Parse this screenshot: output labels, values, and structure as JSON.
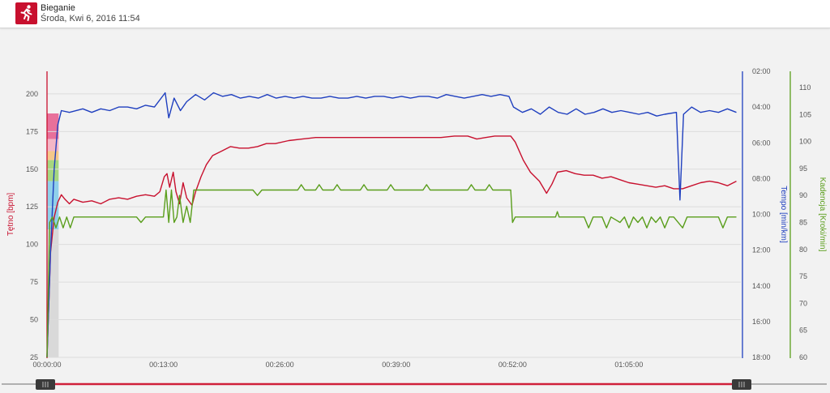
{
  "header": {
    "title": "Bieganie",
    "subtitle": "Środa, Kwi 6, 2016 11:54",
    "icon": "running-person-icon",
    "icon_color": "#c8102e"
  },
  "chart_data": {
    "type": "line",
    "x_ticks": [
      "00:00:00",
      "00:13:00",
      "00:26:00",
      "00:39:00",
      "00:52:00",
      "01:05:00"
    ],
    "x_range_minutes": [
      0,
      77.5
    ],
    "zones": {
      "colors": [
        "#e8709a",
        "#f4b6c6",
        "#f5c88a",
        "#a6d67f",
        "#8fd0ea",
        "#d9d9d9"
      ],
      "hr_bounds": [
        [
          170,
          187
        ],
        [
          162,
          170
        ],
        [
          156,
          162
        ],
        [
          142,
          156
        ],
        [
          110,
          142
        ],
        [
          25,
          110
        ]
      ]
    },
    "axes": {
      "heart_rate": {
        "label": "Tętno [bpm]",
        "color": "#c8102e",
        "ticks": [
          25,
          50,
          75,
          100,
          125,
          150,
          175,
          200
        ],
        "range": [
          25,
          215
        ]
      },
      "pace": {
        "label": "Tempo [min/km]",
        "color": "#1f3fbf",
        "ticks": [
          "02:00",
          "04:00",
          "06:00",
          "08:00",
          "10:00",
          "12:00",
          "14:00",
          "16:00",
          "18:00"
        ],
        "range_min_per_km": [
          2,
          18
        ]
      },
      "cadence": {
        "label": "Kadencja [Kroki/min]",
        "color": "#5a9e1c",
        "ticks": [
          60,
          65,
          70,
          75,
          80,
          85,
          90,
          95,
          100,
          105,
          110
        ],
        "range": [
          60,
          113
        ]
      }
    },
    "series": [
      {
        "key": "heart_rate",
        "name": "Tętno [bpm]",
        "color": "#c8102e",
        "unit": "bpm",
        "points": [
          [
            0,
            25
          ],
          [
            0.4,
            95
          ],
          [
            0.8,
            118
          ],
          [
            1.2,
            128
          ],
          [
            1.6,
            133
          ],
          [
            2.0,
            130
          ],
          [
            2.5,
            127
          ],
          [
            3.0,
            130
          ],
          [
            4.0,
            128
          ],
          [
            5.0,
            129
          ],
          [
            6.0,
            127
          ],
          [
            7.0,
            130
          ],
          [
            8.0,
            131
          ],
          [
            9.0,
            130
          ],
          [
            10.0,
            132
          ],
          [
            11.0,
            133
          ],
          [
            12.0,
            132
          ],
          [
            12.6,
            135
          ],
          [
            13.1,
            145
          ],
          [
            13.4,
            147
          ],
          [
            13.7,
            138
          ],
          [
            14.1,
            148
          ],
          [
            14.4,
            135
          ],
          [
            14.8,
            127
          ],
          [
            15.2,
            141
          ],
          [
            15.6,
            131
          ],
          [
            16.2,
            126
          ],
          [
            16.6,
            135
          ],
          [
            17.2,
            145
          ],
          [
            17.8,
            153
          ],
          [
            18.5,
            159
          ],
          [
            19.5,
            162
          ],
          [
            20.5,
            165
          ],
          [
            21.5,
            164
          ],
          [
            22.5,
            164
          ],
          [
            23.5,
            165
          ],
          [
            24.5,
            167
          ],
          [
            25.5,
            167
          ],
          [
            27.0,
            169
          ],
          [
            28.5,
            170
          ],
          [
            30.0,
            171
          ],
          [
            32.0,
            171
          ],
          [
            34.0,
            171
          ],
          [
            36.0,
            171
          ],
          [
            38.0,
            171
          ],
          [
            40.0,
            171
          ],
          [
            42.0,
            171
          ],
          [
            44.0,
            171
          ],
          [
            45.5,
            172
          ],
          [
            47.0,
            172
          ],
          [
            48.0,
            170
          ],
          [
            49.0,
            171
          ],
          [
            50.0,
            172
          ],
          [
            51.0,
            172
          ],
          [
            51.8,
            172
          ],
          [
            52.3,
            168
          ],
          [
            53.2,
            156
          ],
          [
            54.0,
            148
          ],
          [
            55.0,
            142
          ],
          [
            55.8,
            134
          ],
          [
            56.4,
            140
          ],
          [
            57.0,
            148
          ],
          [
            58.0,
            149
          ],
          [
            59.0,
            147
          ],
          [
            60.0,
            146
          ],
          [
            61.0,
            146
          ],
          [
            62.0,
            144
          ],
          [
            63.0,
            145
          ],
          [
            64.0,
            143
          ],
          [
            65.0,
            141
          ],
          [
            66.0,
            140
          ],
          [
            67.0,
            139
          ],
          [
            68.0,
            138
          ],
          [
            69.0,
            139
          ],
          [
            70.0,
            137
          ],
          [
            71.0,
            137
          ],
          [
            72.0,
            139
          ],
          [
            73.0,
            141
          ],
          [
            74.0,
            142
          ],
          [
            75.0,
            141
          ],
          [
            76.0,
            139
          ],
          [
            77.0,
            142
          ]
        ]
      },
      {
        "key": "pace",
        "name": "Tempo [min/km]",
        "color": "#1f3fbf",
        "unit": "min/km",
        "points": [
          [
            0,
            18.0
          ],
          [
            0.4,
            12.0
          ],
          [
            0.8,
            7.5
          ],
          [
            1.2,
            5.0
          ],
          [
            1.6,
            4.2
          ],
          [
            2.5,
            4.3
          ],
          [
            4.0,
            4.1
          ],
          [
            5.0,
            4.3
          ],
          [
            6.0,
            4.1
          ],
          [
            7.0,
            4.2
          ],
          [
            8.0,
            4.0
          ],
          [
            9.0,
            4.0
          ],
          [
            10.0,
            4.1
          ],
          [
            11.0,
            3.9
          ],
          [
            12.0,
            4.0
          ],
          [
            13.2,
            3.2
          ],
          [
            13.6,
            4.6
          ],
          [
            14.2,
            3.5
          ],
          [
            14.9,
            4.2
          ],
          [
            15.6,
            3.7
          ],
          [
            16.6,
            3.3
          ],
          [
            17.6,
            3.6
          ],
          [
            18.6,
            3.2
          ],
          [
            19.6,
            3.4
          ],
          [
            20.6,
            3.3
          ],
          [
            21.6,
            3.5
          ],
          [
            22.6,
            3.4
          ],
          [
            23.6,
            3.5
          ],
          [
            24.6,
            3.3
          ],
          [
            25.6,
            3.5
          ],
          [
            26.6,
            3.4
          ],
          [
            27.6,
            3.5
          ],
          [
            28.6,
            3.4
          ],
          [
            29.6,
            3.5
          ],
          [
            30.6,
            3.5
          ],
          [
            31.6,
            3.4
          ],
          [
            32.6,
            3.5
          ],
          [
            33.6,
            3.5
          ],
          [
            34.6,
            3.4
          ],
          [
            35.6,
            3.5
          ],
          [
            36.6,
            3.4
          ],
          [
            37.6,
            3.4
          ],
          [
            38.6,
            3.5
          ],
          [
            39.6,
            3.4
          ],
          [
            40.6,
            3.5
          ],
          [
            41.6,
            3.4
          ],
          [
            42.6,
            3.4
          ],
          [
            43.6,
            3.5
          ],
          [
            44.6,
            3.3
          ],
          [
            45.6,
            3.4
          ],
          [
            46.6,
            3.5
          ],
          [
            47.6,
            3.4
          ],
          [
            48.6,
            3.3
          ],
          [
            49.6,
            3.4
          ],
          [
            50.6,
            3.3
          ],
          [
            51.6,
            3.4
          ],
          [
            52.1,
            4.0
          ],
          [
            53.1,
            4.3
          ],
          [
            54.1,
            4.1
          ],
          [
            55.1,
            4.4
          ],
          [
            56.1,
            4.0
          ],
          [
            57.1,
            4.3
          ],
          [
            58.1,
            4.4
          ],
          [
            59.1,
            4.1
          ],
          [
            60.1,
            4.4
          ],
          [
            61.1,
            4.3
          ],
          [
            62.1,
            4.1
          ],
          [
            63.1,
            4.3
          ],
          [
            64.1,
            4.2
          ],
          [
            65.1,
            4.3
          ],
          [
            66.1,
            4.4
          ],
          [
            67.1,
            4.3
          ],
          [
            68.1,
            4.5
          ],
          [
            69.0,
            4.4
          ],
          [
            70.3,
            4.3
          ],
          [
            70.7,
            9.2
          ],
          [
            71.1,
            4.4
          ],
          [
            72.0,
            4.0
          ],
          [
            73.0,
            4.3
          ],
          [
            74.0,
            4.2
          ],
          [
            75.0,
            4.3
          ],
          [
            76.0,
            4.1
          ],
          [
            77.0,
            4.3
          ]
        ]
      },
      {
        "key": "cadence",
        "name": "Kadencja [Kroki/min]",
        "color": "#5a9e1c",
        "unit": "kroki/min",
        "points": [
          [
            0,
            60
          ],
          [
            0.3,
            85
          ],
          [
            0.6,
            86
          ],
          [
            1.0,
            84
          ],
          [
            1.4,
            86
          ],
          [
            1.8,
            84
          ],
          [
            2.2,
            86
          ],
          [
            2.6,
            84
          ],
          [
            3.0,
            86
          ],
          [
            5.0,
            86
          ],
          [
            8.0,
            86
          ],
          [
            10.0,
            86
          ],
          [
            10.5,
            85
          ],
          [
            11.0,
            86
          ],
          [
            12.0,
            86
          ],
          [
            13.0,
            86
          ],
          [
            13.3,
            91
          ],
          [
            13.6,
            85
          ],
          [
            13.9,
            91
          ],
          [
            14.2,
            85
          ],
          [
            14.5,
            86
          ],
          [
            14.8,
            90
          ],
          [
            15.2,
            85
          ],
          [
            15.6,
            88
          ],
          [
            16.0,
            85
          ],
          [
            16.4,
            91
          ],
          [
            17.0,
            91
          ],
          [
            20.0,
            91
          ],
          [
            23.0,
            91
          ],
          [
            23.5,
            90
          ],
          [
            24.0,
            91
          ],
          [
            27.0,
            91
          ],
          [
            28.0,
            91
          ],
          [
            28.4,
            92
          ],
          [
            28.8,
            91
          ],
          [
            30.0,
            91
          ],
          [
            30.4,
            92
          ],
          [
            30.8,
            91
          ],
          [
            32.0,
            91
          ],
          [
            32.4,
            92
          ],
          [
            32.8,
            91
          ],
          [
            35.0,
            91
          ],
          [
            35.4,
            92
          ],
          [
            35.8,
            91
          ],
          [
            38.0,
            91
          ],
          [
            38.4,
            92
          ],
          [
            38.8,
            91
          ],
          [
            42.0,
            91
          ],
          [
            42.4,
            92
          ],
          [
            42.8,
            91
          ],
          [
            45.0,
            91
          ],
          [
            47.0,
            91
          ],
          [
            47.4,
            92
          ],
          [
            47.8,
            91
          ],
          [
            49.0,
            91
          ],
          [
            49.4,
            92
          ],
          [
            49.8,
            91
          ],
          [
            51.8,
            91
          ],
          [
            52.0,
            85
          ],
          [
            52.3,
            86
          ],
          [
            55.0,
            86
          ],
          [
            56.8,
            86
          ],
          [
            57.0,
            87
          ],
          [
            57.2,
            86
          ],
          [
            60.0,
            86
          ],
          [
            60.5,
            84
          ],
          [
            61.0,
            86
          ],
          [
            62.0,
            86
          ],
          [
            62.5,
            84
          ],
          [
            63.0,
            86
          ],
          [
            64.0,
            85
          ],
          [
            64.5,
            86
          ],
          [
            65.0,
            84
          ],
          [
            65.5,
            86
          ],
          [
            66.0,
            85
          ],
          [
            66.5,
            86
          ],
          [
            67.0,
            84
          ],
          [
            67.5,
            86
          ],
          [
            68.0,
            85
          ],
          [
            68.5,
            86
          ],
          [
            69.0,
            84
          ],
          [
            69.5,
            86
          ],
          [
            70.0,
            86
          ],
          [
            71.0,
            84
          ],
          [
            71.5,
            86
          ],
          [
            74.0,
            86
          ],
          [
            75.0,
            86
          ],
          [
            75.5,
            84
          ],
          [
            76.0,
            86
          ],
          [
            77.0,
            86
          ]
        ]
      }
    ],
    "grid": true,
    "legend": "none"
  },
  "scrubber": {
    "track_color": "#d0203a",
    "handle_left_icon": "grip-lines-icon",
    "handle_right_icon": "grip-lines-icon",
    "start_fraction": 0,
    "end_fraction": 1
  }
}
